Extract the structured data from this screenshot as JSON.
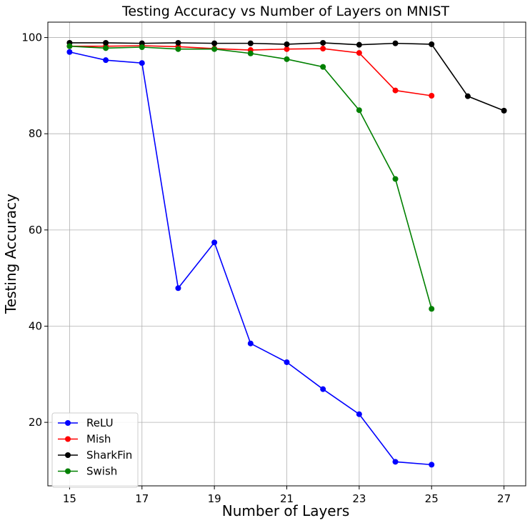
{
  "chart_data": {
    "type": "line",
    "title": "Testing Accuracy vs Number of Layers on MNIST",
    "xlabel": "Number of Layers",
    "ylabel": "Testing Accuracy",
    "xlim": [
      14.4,
      27.6
    ],
    "ylim": [
      6.8,
      103.2
    ],
    "xticks": [
      15,
      17,
      19,
      21,
      23,
      25,
      27
    ],
    "yticks": [
      20,
      40,
      60,
      80,
      100
    ],
    "grid": true,
    "legend_position": "lower-left",
    "series": [
      {
        "name": "ReLU",
        "color": "#0000ff",
        "x": [
          15,
          16,
          17,
          18,
          19,
          20,
          21,
          22,
          23,
          24,
          25
        ],
        "y": [
          97.0,
          95.3,
          94.7,
          47.9,
          57.4,
          36.4,
          32.5,
          26.9,
          21.7,
          11.8,
          11.2
        ]
      },
      {
        "name": "Mish",
        "color": "#ff0000",
        "x": [
          15,
          16,
          17,
          18,
          19,
          20,
          21,
          22,
          23,
          24,
          25
        ],
        "y": [
          98.2,
          98.2,
          98.3,
          98.1,
          97.7,
          97.4,
          97.6,
          97.7,
          96.8,
          89.0,
          87.9
        ]
      },
      {
        "name": "SharkFin",
        "color": "#000000",
        "x": [
          15,
          16,
          17,
          18,
          19,
          20,
          21,
          22,
          23,
          24,
          25,
          26,
          27
        ],
        "y": [
          98.9,
          98.9,
          98.8,
          98.9,
          98.8,
          98.8,
          98.6,
          98.9,
          98.5,
          98.8,
          98.6,
          87.8,
          84.8
        ]
      },
      {
        "name": "Swish",
        "color": "#008000",
        "x": [
          15,
          16,
          17,
          18,
          19,
          20,
          21,
          22,
          23,
          24,
          25
        ],
        "y": [
          98.2,
          97.8,
          98.0,
          97.6,
          97.6,
          96.7,
          95.5,
          93.9,
          84.9,
          70.6,
          43.6
        ]
      }
    ]
  }
}
